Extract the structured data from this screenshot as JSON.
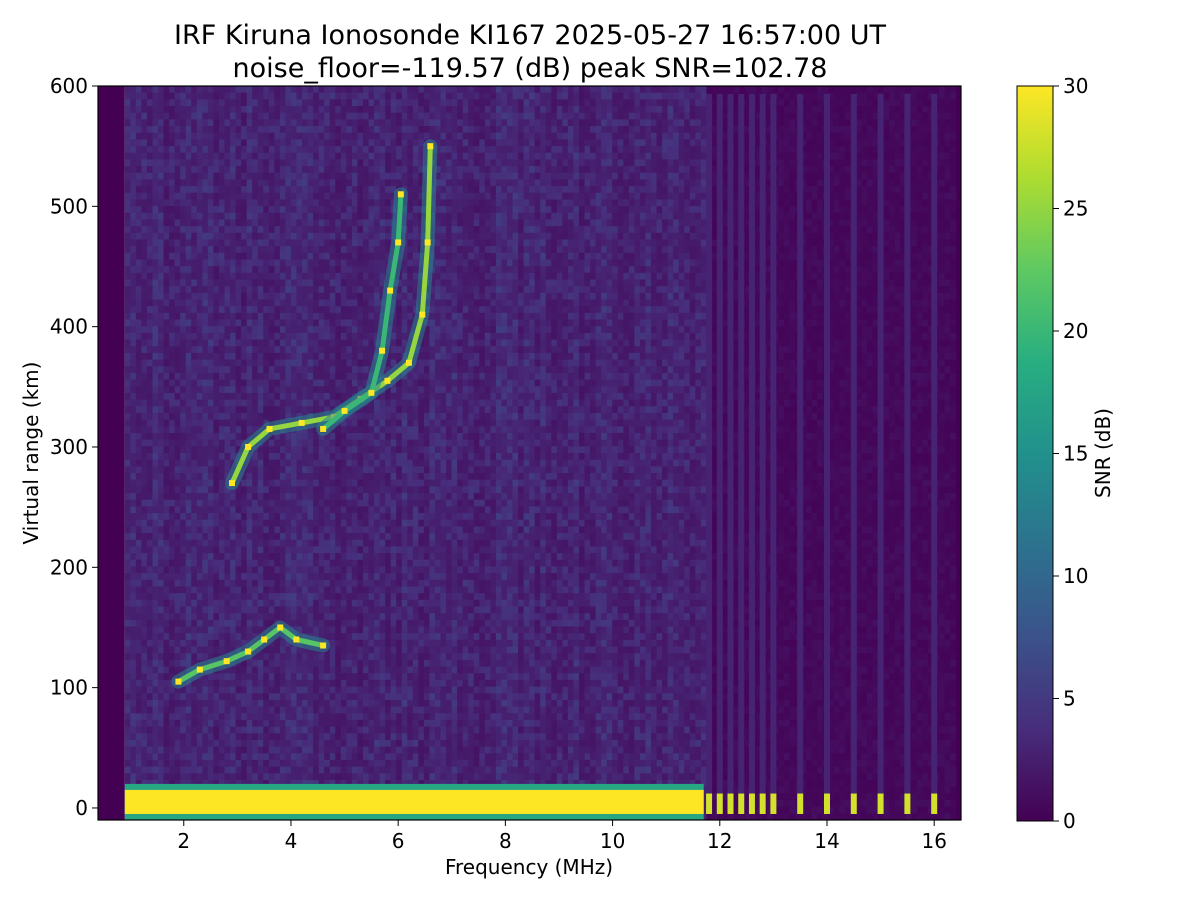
{
  "chart_data": {
    "type": "heatmap",
    "title": "IRF Kiruna Ionosonde KI167 2025-05-27 16:57:00  UT",
    "subtitle": "noise_floor=-119.57 (dB) peak SNR=102.78",
    "xlabel": "Frequency (MHz)",
    "ylabel": "Virtual range (km)",
    "colorbar_label": "SNR (dB)",
    "colormap": "viridis",
    "xlim": [
      0.4,
      16.5
    ],
    "ylim": [
      -10,
      600
    ],
    "clim": [
      0,
      30
    ],
    "x_ticks": [
      2,
      4,
      6,
      8,
      10,
      12,
      14,
      16
    ],
    "y_ticks": [
      0,
      100,
      200,
      300,
      400,
      500,
      600
    ],
    "colorbar_ticks": [
      0,
      5,
      10,
      15,
      20,
      25,
      30
    ],
    "grid": false,
    "legend": "none",
    "data_x_range_mhz": [
      0.9,
      16.4
    ],
    "features": [
      {
        "name": "ground/direct signal band",
        "x_range": [
          0.9,
          11.7
        ],
        "y_range": [
          -5,
          15
        ],
        "snr": 30
      },
      {
        "name": "E-layer trace",
        "points": [
          [
            1.9,
            105
          ],
          [
            2.3,
            115
          ],
          [
            2.8,
            122
          ],
          [
            3.2,
            130
          ],
          [
            3.5,
            140
          ],
          [
            3.8,
            150
          ],
          [
            4.1,
            140
          ],
          [
            4.6,
            135
          ]
        ],
        "snr": 22
      },
      {
        "name": "F-layer trace (O-mode)",
        "points": [
          [
            2.9,
            270
          ],
          [
            3.2,
            300
          ],
          [
            3.6,
            315
          ],
          [
            4.2,
            320
          ],
          [
            4.8,
            325
          ],
          [
            5.3,
            340
          ],
          [
            5.8,
            355
          ],
          [
            6.2,
            370
          ],
          [
            6.45,
            410
          ],
          [
            6.55,
            470
          ],
          [
            6.6,
            550
          ]
        ],
        "snr": 25
      },
      {
        "name": "F-layer trace (X-mode)",
        "points": [
          [
            4.6,
            315
          ],
          [
            5.0,
            330
          ],
          [
            5.5,
            345
          ],
          [
            5.7,
            380
          ],
          [
            5.85,
            430
          ],
          [
            6.0,
            470
          ],
          [
            6.05,
            510
          ]
        ],
        "snr": 20
      },
      {
        "name": "pulsed frequency ground echoes",
        "x": [
          11.8,
          12.0,
          12.2,
          12.4,
          12.6,
          12.8,
          13.0,
          13.5,
          14.0,
          14.5,
          15.0,
          15.5,
          16.0
        ],
        "y_range": [
          -5,
          12
        ],
        "snr": 28
      }
    ]
  }
}
